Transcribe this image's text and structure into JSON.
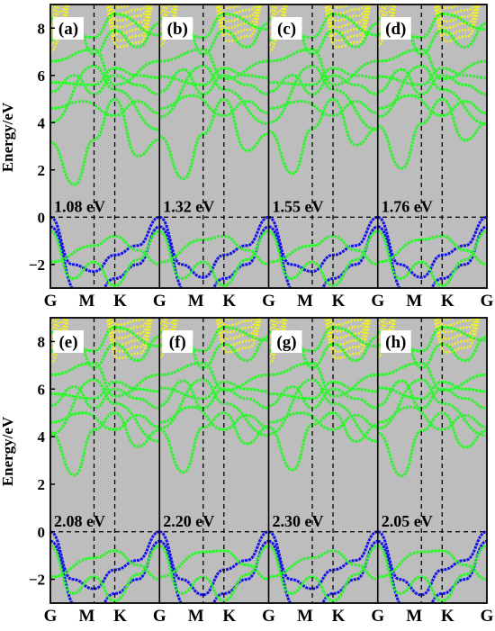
{
  "chart_data": [
    {
      "type": "line",
      "ylabel": "Energy/eV",
      "ylim": [
        -3,
        9
      ],
      "yticks": [
        -2,
        0,
        2,
        4,
        6,
        8
      ],
      "x_ticks": [
        "G",
        "M",
        "K",
        "G"
      ],
      "fermi_level": 0,
      "colors": {
        "background": "#bdbdbd",
        "valence": "#1414e6",
        "conduction_mixed": "#2df52d",
        "high_energy": "#f2f21e"
      },
      "panels": [
        {
          "label": "(a)",
          "gap_label": "1.08 eV",
          "gap": 1.08
        },
        {
          "label": "(b)",
          "gap_label": "1.32 eV",
          "gap": 1.32
        },
        {
          "label": "(c)",
          "gap_label": "1.55 eV",
          "gap": 1.55
        },
        {
          "label": "(d)",
          "gap_label": "1.76 eV",
          "gap": 1.76
        }
      ]
    },
    {
      "type": "line",
      "ylabel": "Energy/eV",
      "ylim": [
        -3,
        9
      ],
      "yticks": [
        -2,
        0,
        2,
        4,
        6,
        8
      ],
      "x_ticks": [
        "G",
        "M",
        "K",
        "G"
      ],
      "fermi_level": 0,
      "colors": {
        "background": "#bdbdbd",
        "valence": "#1414e6",
        "conduction_mixed": "#2df52d",
        "high_energy": "#f2f21e"
      },
      "panels": [
        {
          "label": "(e)",
          "gap_label": "2.08 eV",
          "gap": 2.08
        },
        {
          "label": "(f)",
          "gap_label": "2.20 eV",
          "gap": 2.2
        },
        {
          "label": "(g)",
          "gap_label": "2.30 eV",
          "gap": 2.3
        },
        {
          "label": "(h)",
          "gap_label": "2.05 eV",
          "gap": 2.05
        }
      ]
    }
  ]
}
